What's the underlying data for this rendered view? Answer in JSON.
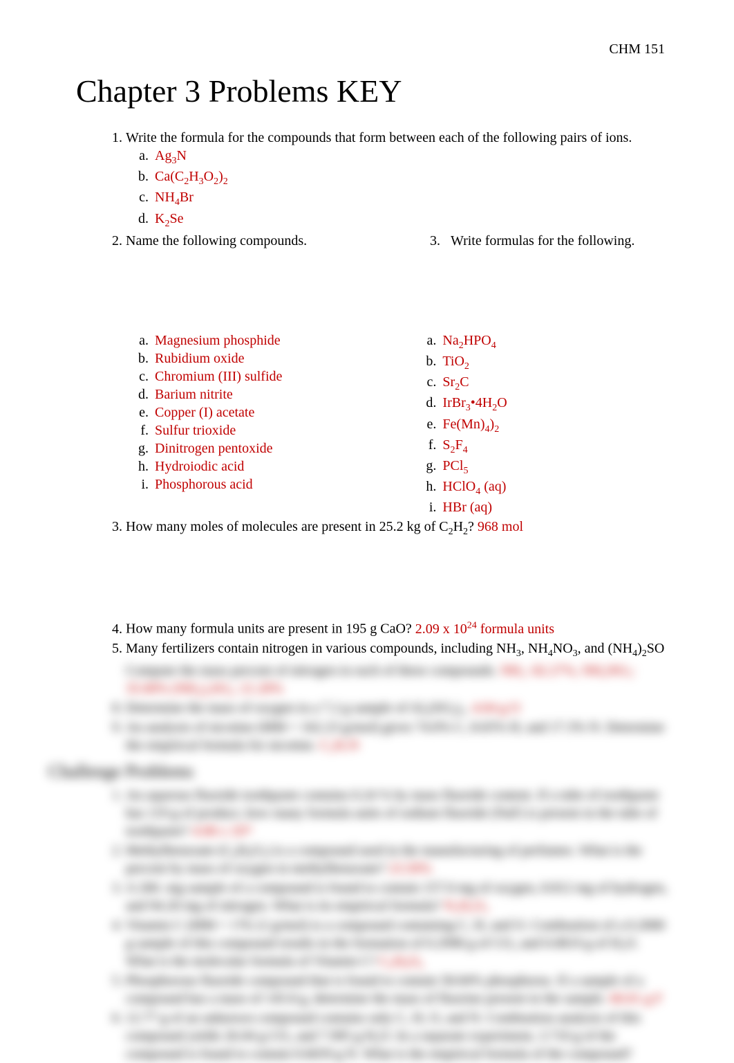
{
  "header": {
    "course": "CHM 151"
  },
  "title": "Chapter 3 Problems KEY",
  "q1": {
    "prompt": "Write the formula for the compounds that form between each of the following pairs of ions.",
    "items": [
      "Ag₃N",
      "Ca(C₂H₃O₂)₂",
      "NH₄Br",
      "K₂Se"
    ]
  },
  "q2_prompt": "Name the following compounds.",
  "q3_prompt": "Write formulas for the following.",
  "q2_items": [
    "Magnesium phosphide",
    "Rubidium oxide",
    "Chromium (III) sulfide",
    "Barium nitrite",
    "Copper (I) acetate",
    "Sulfur trioxide",
    "Dinitrogen pentoxide",
    "Hydroiodic acid",
    "Phosphorous acid"
  ],
  "q3_items": [
    "Na₂HPO₄",
    "TiO₂",
    "Sr₂C",
    "IrBr₃•4H₂O",
    "Fe(Mn)₄)₂",
    "S₂F₄",
    "PCl₅",
    "HClO₄ (aq)",
    "HBr (aq)"
  ],
  "q4": {
    "prompt": "How many moles of molecules are present in 25.2 kg of C₂H₂? ",
    "ans": "968 mol"
  },
  "q6": {
    "prompt": "How many formula units are present in 195 g CaO? ",
    "ans": "2.09 x 10²⁴ formula units"
  },
  "q7": {
    "prompt": "Many fertilizers contain nitrogen in various compounds, including NH₃, NH₄NO₃, and (NH₄)₂SO",
    "line2": "Compute the mass percent of nitrogen in each of these compounds. ",
    "ans2": "NH₃: 82.27%, NH₄NO₃:",
    "line3": "35.00% (NH₄)₂SO₄: 21.20%"
  },
  "blur": {
    "q8": {
      "text": "Determine the mass of oxygen in a 7.2 g sample of Al₂(SO₄)₃. ",
      "ans": "4.04 g O"
    },
    "q9": {
      "text": "An analysis of nicotine (MM = 162.23 g/mol) gives 74.0% C, 8.65% H, and 17.3% N. Determine the empirical formula for nicotine. ",
      "ans": "C₅H₇N"
    },
    "challenge": "Challenge Problems",
    "c1": {
      "text": "An aqueous fluoride toothpaste contains 0.24 % by mass fluoride content. If a tube of toothpaste has 119 g of product, how many formula units of sodium fluoride (NaF) is present in the tube of toothpaste? ",
      "ans": "4.08 x 10²¹"
    },
    "c2": {
      "text": "Methylbenzoate (C₈H₈O₂) is a compound used in the manufacturing of perfumes. What is the percent by mass of oxygen in methylbenzoate? ",
      "ans": "23.50%"
    },
    "c3": {
      "text": "A 260. mg sample of a compound is found to contain 157.0 mg of oxygen, 8.812 mg of hydrogen, and 94.20 mg of nitrogen. What is its empirical formula? ",
      "ans": "N₂H₂O₃"
    },
    "c4": {
      "text": "Vitamin C (MM = 176.12 g/mol) is a compound containing C, H, and O. Combustion of a 0.2000 g sample of this compound results in the formation of 0.2998 g of CO₂ and 0.0819 g of H₂O. What is the molecular formula of Vitamin C? ",
      "ans": "C₆H₈O₆"
    },
    "c5": {
      "text": "Phosphorous fluoride compound that is found to contain 58.84% phosphorus. If a sample of a compound has a mass of 145.8 g, determine the mass of fluorine present in the sample. ",
      "ans": "60.01 g F"
    },
    "c6": {
      "text": "12.77 g of an unknown compound contains only C, H, O, and N. Combustion analysis of this compound yields 26.04 g CO₂ and 7.995 g H₂O. In a separate experiment, 3.710 g of the compound is found to contain 0.6659 g N. What is the empirical formula of the compound? ",
      "ans": ""
    }
  },
  "colors": {
    "text": "#000000",
    "answer": "#c00000",
    "bg": "#ffffff"
  },
  "typography": {
    "body_fontsize": 20,
    "title_fontsize": 46,
    "font_family": "Times New Roman"
  }
}
